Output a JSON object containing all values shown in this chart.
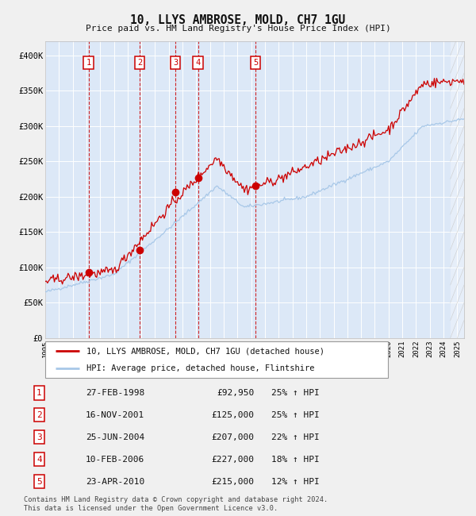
{
  "title": "10, LLYS AMBROSE, MOLD, CH7 1GU",
  "subtitle": "Price paid vs. HM Land Registry's House Price Index (HPI)",
  "footnote": "Contains HM Land Registry data © Crown copyright and database right 2024.\nThis data is licensed under the Open Government Licence v3.0.",
  "legend_line1": "10, LLYS AMBROSE, MOLD, CH7 1GU (detached house)",
  "legend_line2": "HPI: Average price, detached house, Flintshire",
  "transactions": [
    {
      "num": 1,
      "date": "27-FEB-1998",
      "price": 92950,
      "hpi_pct": "25% ↑ HPI",
      "year": 1998.15
    },
    {
      "num": 2,
      "date": "16-NOV-2001",
      "price": 125000,
      "hpi_pct": "25% ↑ HPI",
      "year": 2001.88
    },
    {
      "num": 3,
      "date": "25-JUN-2004",
      "price": 207000,
      "hpi_pct": "22% ↑ HPI",
      "year": 2004.48
    },
    {
      "num": 4,
      "date": "10-FEB-2006",
      "price": 227000,
      "hpi_pct": "18% ↑ HPI",
      "year": 2006.12
    },
    {
      "num": 5,
      "date": "23-APR-2010",
      "price": 215000,
      "hpi_pct": "12% ↑ HPI",
      "year": 2010.32
    }
  ],
  "ylim": [
    0,
    420000
  ],
  "xlim_start": 1995,
  "xlim_end": 2025.5,
  "yticks": [
    0,
    50000,
    100000,
    150000,
    200000,
    250000,
    300000,
    350000,
    400000
  ],
  "ytick_labels": [
    "£0",
    "£50K",
    "£100K",
    "£150K",
    "£200K",
    "£250K",
    "£300K",
    "£350K",
    "£400K"
  ],
  "fig_bg": "#f0f0f0",
  "plot_bg": "#dce8f7",
  "grid_color": "#ffffff",
  "hpi_line_color": "#a8c8e8",
  "price_line_color": "#cc0000",
  "dot_color": "#cc0000",
  "vline_color": "#cc0000",
  "label_box_color": "#cc0000"
}
